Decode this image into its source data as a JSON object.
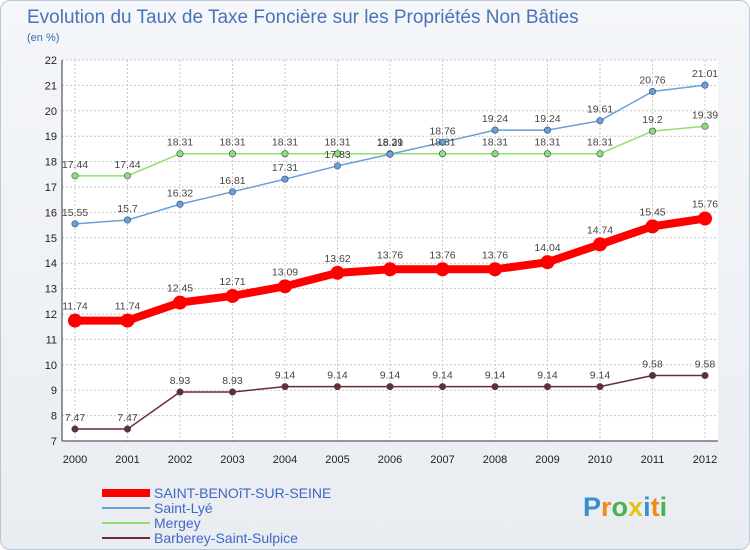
{
  "title": "Evolution du Taux de Taxe Foncière sur les Propriétés Non Bâties",
  "unit": "(en %)",
  "logo": "Proxiti",
  "colors": {
    "saint_benoit": "#ff0000",
    "saint_lye": "#6a9fd8",
    "mergey": "#90e070",
    "barberey": "#6b2c2c",
    "title": "#4a73b7",
    "grid": "#c8c8c8"
  },
  "chart_data": {
    "type": "line",
    "title": "Evolution du Taux de Taxe Foncière sur les Propriétés Non Bâties",
    "ylabel": "(en %)",
    "xlabel": "",
    "ylim": [
      7,
      22
    ],
    "yticks": [
      7,
      8,
      9,
      10,
      11,
      12,
      13,
      14,
      15,
      16,
      17,
      18,
      19,
      20,
      21,
      22
    ],
    "x": [
      "2000",
      "2001",
      "2002",
      "2003",
      "2004",
      "2005",
      "2006",
      "2007",
      "2008",
      "2009",
      "2010",
      "2011",
      "2012"
    ],
    "grid": true,
    "series": [
      {
        "name": "SAINT-BENOîT-SUR-SEINE",
        "key": "saint_benoit",
        "values": [
          11.74,
          11.74,
          12.45,
          12.71,
          13.09,
          13.62,
          13.76,
          13.76,
          13.76,
          14.04,
          14.74,
          15.45,
          15.76
        ],
        "labels": [
          "11.74",
          "11.74",
          "12.45",
          "12.71",
          "13.09",
          "13.62",
          "13.76",
          "13.76",
          "13.76",
          "14.04",
          "14.74",
          "15.45",
          "15.76"
        ]
      },
      {
        "name": "Saint-Lyé",
        "key": "saint_lye",
        "values": [
          15.55,
          15.7,
          16.32,
          16.81,
          17.31,
          17.83,
          18.29,
          18.76,
          19.24,
          19.24,
          19.61,
          20.76,
          21.01
        ],
        "labels": [
          "15.55",
          "15.7",
          "16.32",
          "16.81",
          "17.31",
          "17.83",
          "18.29",
          "18.76",
          "19.24",
          "19.24",
          "19.61",
          "20.76",
          "21.01"
        ]
      },
      {
        "name": "Mergey",
        "key": "mergey",
        "values": [
          17.44,
          17.44,
          18.31,
          18.31,
          18.31,
          18.31,
          18.31,
          18.31,
          18.31,
          18.31,
          18.31,
          19.2,
          19.39
        ],
        "labels": [
          "17.44",
          "17.44",
          "18.31",
          "18.31",
          "18.31",
          "18.31",
          "18.31",
          "18.31",
          "18.31",
          "18.31",
          "18.31",
          "19.2",
          "19.39"
        ]
      },
      {
        "name": "Barberey-Saint-Sulpice",
        "key": "barberey",
        "values": [
          7.47,
          7.47,
          8.93,
          8.93,
          9.14,
          9.14,
          9.14,
          9.14,
          9.14,
          9.14,
          9.14,
          9.58,
          9.58
        ],
        "labels": [
          "7.47",
          "7.47",
          "8.93",
          "8.93",
          "9.14",
          "9.14",
          "9.14",
          "9.14",
          "9.14",
          "9.14",
          "9.14",
          "9.58",
          "9.58"
        ]
      }
    ]
  }
}
